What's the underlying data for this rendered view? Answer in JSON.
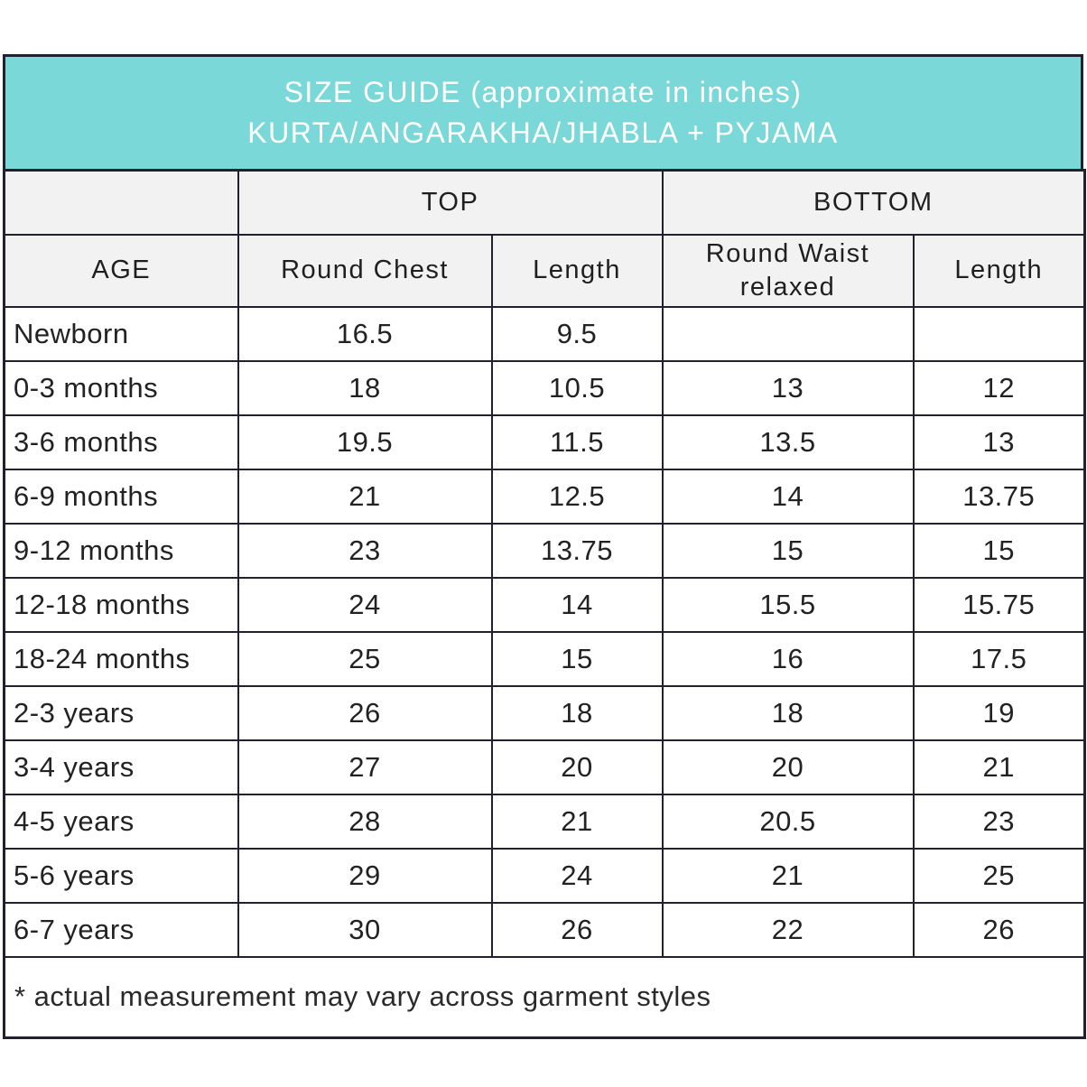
{
  "header": {
    "title_line1": "SIZE GUIDE (approximate in inches)",
    "title_line2": "KURTA/ANGARAKHA/JHABLA + PYJAMA"
  },
  "table": {
    "group_headers": {
      "top": "TOP",
      "bottom": "BOTTOM"
    },
    "column_headers": {
      "age": "AGE",
      "round_chest": "Round Chest",
      "top_length": "Length",
      "round_waist_relaxed": "Round Waist relaxed",
      "bottom_length": "Length"
    },
    "column_keys": [
      "age",
      "round_chest",
      "top_length",
      "round_waist_relaxed",
      "bottom_length"
    ],
    "rows": [
      {
        "age": "Newborn",
        "round_chest": "16.5",
        "top_length": "9.5",
        "round_waist_relaxed": "",
        "bottom_length": ""
      },
      {
        "age": "0-3 months",
        "round_chest": "18",
        "top_length": "10.5",
        "round_waist_relaxed": "13",
        "bottom_length": "12"
      },
      {
        "age": "3-6 months",
        "round_chest": "19.5",
        "top_length": "11.5",
        "round_waist_relaxed": "13.5",
        "bottom_length": "13"
      },
      {
        "age": "6-9 months",
        "round_chest": "21",
        "top_length": "12.5",
        "round_waist_relaxed": "14",
        "bottom_length": "13.75"
      },
      {
        "age": "9-12 months",
        "round_chest": "23",
        "top_length": "13.75",
        "round_waist_relaxed": "15",
        "bottom_length": "15"
      },
      {
        "age": "12-18 months",
        "round_chest": "24",
        "top_length": "14",
        "round_waist_relaxed": "15.5",
        "bottom_length": "15.75"
      },
      {
        "age": "18-24 months",
        "round_chest": "25",
        "top_length": "15",
        "round_waist_relaxed": "16",
        "bottom_length": "17.5"
      },
      {
        "age": "2-3 years",
        "round_chest": "26",
        "top_length": "18",
        "round_waist_relaxed": "18",
        "bottom_length": "19"
      },
      {
        "age": "3-4 years",
        "round_chest": "27",
        "top_length": "20",
        "round_waist_relaxed": "20",
        "bottom_length": "21"
      },
      {
        "age": "4-5 years",
        "round_chest": "28",
        "top_length": "21",
        "round_waist_relaxed": "20.5",
        "bottom_length": "23"
      },
      {
        "age": "5-6 years",
        "round_chest": "29",
        "top_length": "24",
        "round_waist_relaxed": "21",
        "bottom_length": "25"
      },
      {
        "age": "6-7 years",
        "round_chest": "30",
        "top_length": "26",
        "round_waist_relaxed": "22",
        "bottom_length": "26"
      }
    ]
  },
  "footnote": "* actual measurement may vary across garment styles",
  "colors": {
    "accent_teal": "#7bd8d9",
    "header_gray": "#f2f2f2",
    "border": "#20202e",
    "title_text": "#ffffff",
    "body_text": "#222222"
  }
}
